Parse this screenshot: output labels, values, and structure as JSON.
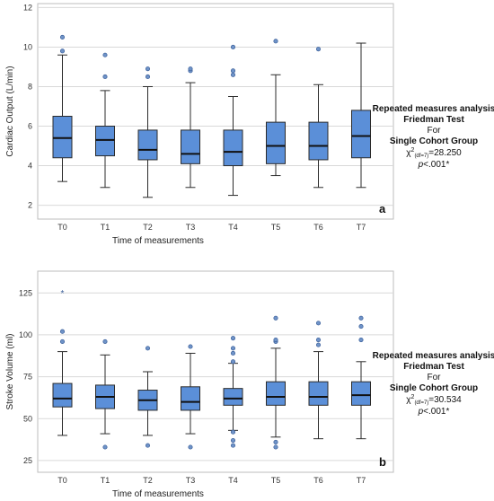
{
  "colors": {
    "box_fill": "#5b8fd8",
    "box_stroke": "#2b2b2b",
    "grid": "#d9d9d9",
    "outlier_fill": "#6f93c8",
    "frame": "#bdbdbd"
  },
  "chart_data": [
    {
      "type": "box",
      "panel_label": "a",
      "xlabel": "Time of measurements",
      "ylabel": "Cardiac Output (L/min)",
      "ylim": [
        1.3,
        12.2
      ],
      "yticks": [
        2,
        4,
        6,
        8,
        10,
        12
      ],
      "grid": "horizontal",
      "categories": [
        "T0",
        "T1",
        "T2",
        "T3",
        "T4",
        "T5",
        "T6",
        "T7"
      ],
      "boxes": [
        {
          "min": 3.2,
          "q1": 4.4,
          "median": 5.4,
          "q3": 6.5,
          "max": 9.6,
          "outliers": [
            9.8,
            10.5
          ],
          "extremes": []
        },
        {
          "min": 2.9,
          "q1": 4.5,
          "median": 5.3,
          "q3": 6.0,
          "max": 7.8,
          "outliers": [
            8.5,
            9.6
          ],
          "extremes": []
        },
        {
          "min": 2.4,
          "q1": 4.3,
          "median": 4.8,
          "q3": 5.8,
          "max": 8.0,
          "outliers": [
            8.5,
            8.9
          ],
          "extremes": []
        },
        {
          "min": 2.9,
          "q1": 4.1,
          "median": 4.6,
          "q3": 5.8,
          "max": 8.2,
          "outliers": [
            8.8,
            8.9
          ],
          "extremes": []
        },
        {
          "min": 2.5,
          "q1": 4.0,
          "median": 4.7,
          "q3": 5.8,
          "max": 7.5,
          "outliers": [
            8.6,
            8.8,
            10.0
          ],
          "extremes": []
        },
        {
          "min": 3.5,
          "q1": 4.1,
          "median": 5.0,
          "q3": 6.2,
          "max": 8.6,
          "outliers": [
            10.3
          ],
          "extremes": []
        },
        {
          "min": 2.9,
          "q1": 4.3,
          "median": 5.0,
          "q3": 6.2,
          "max": 8.1,
          "outliers": [
            9.9
          ],
          "extremes": []
        },
        {
          "min": 2.9,
          "q1": 4.4,
          "median": 5.5,
          "q3": 6.8,
          "max": 10.2,
          "outliers": [],
          "extremes": []
        }
      ],
      "annotation": {
        "line1": "Repeated measures analysis",
        "line2": "Friedman Test",
        "line3": "For",
        "line4": "Single Cohort Group",
        "stat_chi": "χ",
        "stat_sup": "2",
        "stat_sub": "(df=7)",
        "stat_value": "=28.250",
        "p_italic": "p",
        "p_rest": "<.001*"
      }
    },
    {
      "type": "box",
      "panel_label": "b",
      "xlabel": "Time of measurements",
      "ylabel": "Stroke Volume (ml)",
      "ylim": [
        18,
        138
      ],
      "yticks": [
        25,
        50,
        75,
        100,
        125
      ],
      "grid": "horizontal",
      "categories": [
        "T0",
        "T1",
        "T2",
        "T3",
        "T4",
        "T5",
        "T6",
        "T7"
      ],
      "boxes": [
        {
          "min": 40,
          "q1": 57,
          "median": 62,
          "q3": 71,
          "max": 90,
          "outliers": [
            96,
            102
          ],
          "extremes": [
            125
          ]
        },
        {
          "min": 41,
          "q1": 56,
          "median": 63,
          "q3": 70,
          "max": 88,
          "outliers": [
            33,
            96
          ],
          "extremes": []
        },
        {
          "min": 40,
          "q1": 55,
          "median": 61,
          "q3": 67,
          "max": 78,
          "outliers": [
            34,
            92
          ],
          "extremes": []
        },
        {
          "min": 41,
          "q1": 55,
          "median": 60,
          "q3": 69,
          "max": 89,
          "outliers": [
            33,
            93
          ],
          "extremes": []
        },
        {
          "min": 43,
          "q1": 58,
          "median": 62,
          "q3": 68,
          "max": 83,
          "outliers": [
            34,
            37,
            42,
            84,
            89,
            92,
            98
          ],
          "extremes": []
        },
        {
          "min": 39,
          "q1": 58,
          "median": 63,
          "q3": 72,
          "max": 92,
          "outliers": [
            33,
            36,
            96,
            97,
            110
          ],
          "extremes": []
        },
        {
          "min": 38,
          "q1": 58,
          "median": 63,
          "q3": 72,
          "max": 90,
          "outliers": [
            94,
            97,
            107
          ],
          "extremes": []
        },
        {
          "min": 38,
          "q1": 58,
          "median": 64,
          "q3": 72,
          "max": 84,
          "outliers": [
            97,
            105,
            110
          ],
          "extremes": []
        }
      ],
      "annotation": {
        "line1": "Repeated measures analysis",
        "line2": "Friedman Test",
        "line3": "For",
        "line4": "Single Cohort Group",
        "stat_chi": "χ",
        "stat_sup": "2",
        "stat_sub": "(df=7)",
        "stat_value": "=30.534",
        "p_italic": "p",
        "p_rest": "<.001*"
      }
    }
  ]
}
